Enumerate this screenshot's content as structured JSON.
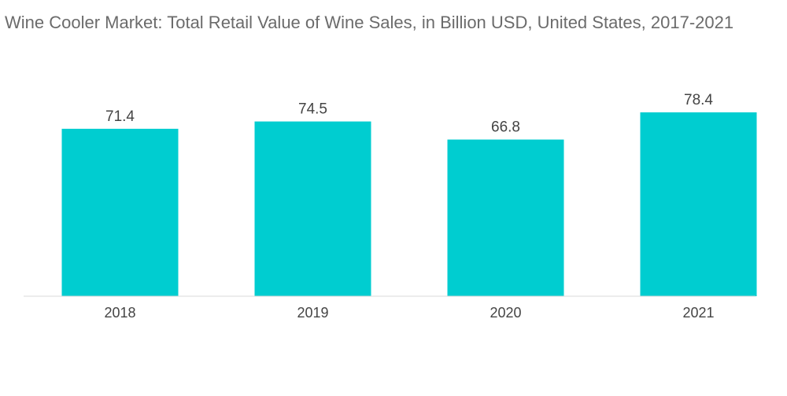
{
  "chart_data": {
    "type": "bar",
    "title": "Wine Cooler Market: Total Retail Value of Wine Sales, in Billion USD, United States, 2017-2021",
    "categories": [
      "2018",
      "2019",
      "2020",
      "2021"
    ],
    "values": [
      71.4,
      74.5,
      66.8,
      78.4
    ],
    "value_labels": [
      "71.4",
      "74.5",
      "66.8",
      "78.4"
    ],
    "xlabel": "",
    "ylabel": "",
    "ylim": [
      0,
      78.4
    ],
    "grid": false,
    "legend": "none",
    "bar_color": "#00cdd0"
  }
}
